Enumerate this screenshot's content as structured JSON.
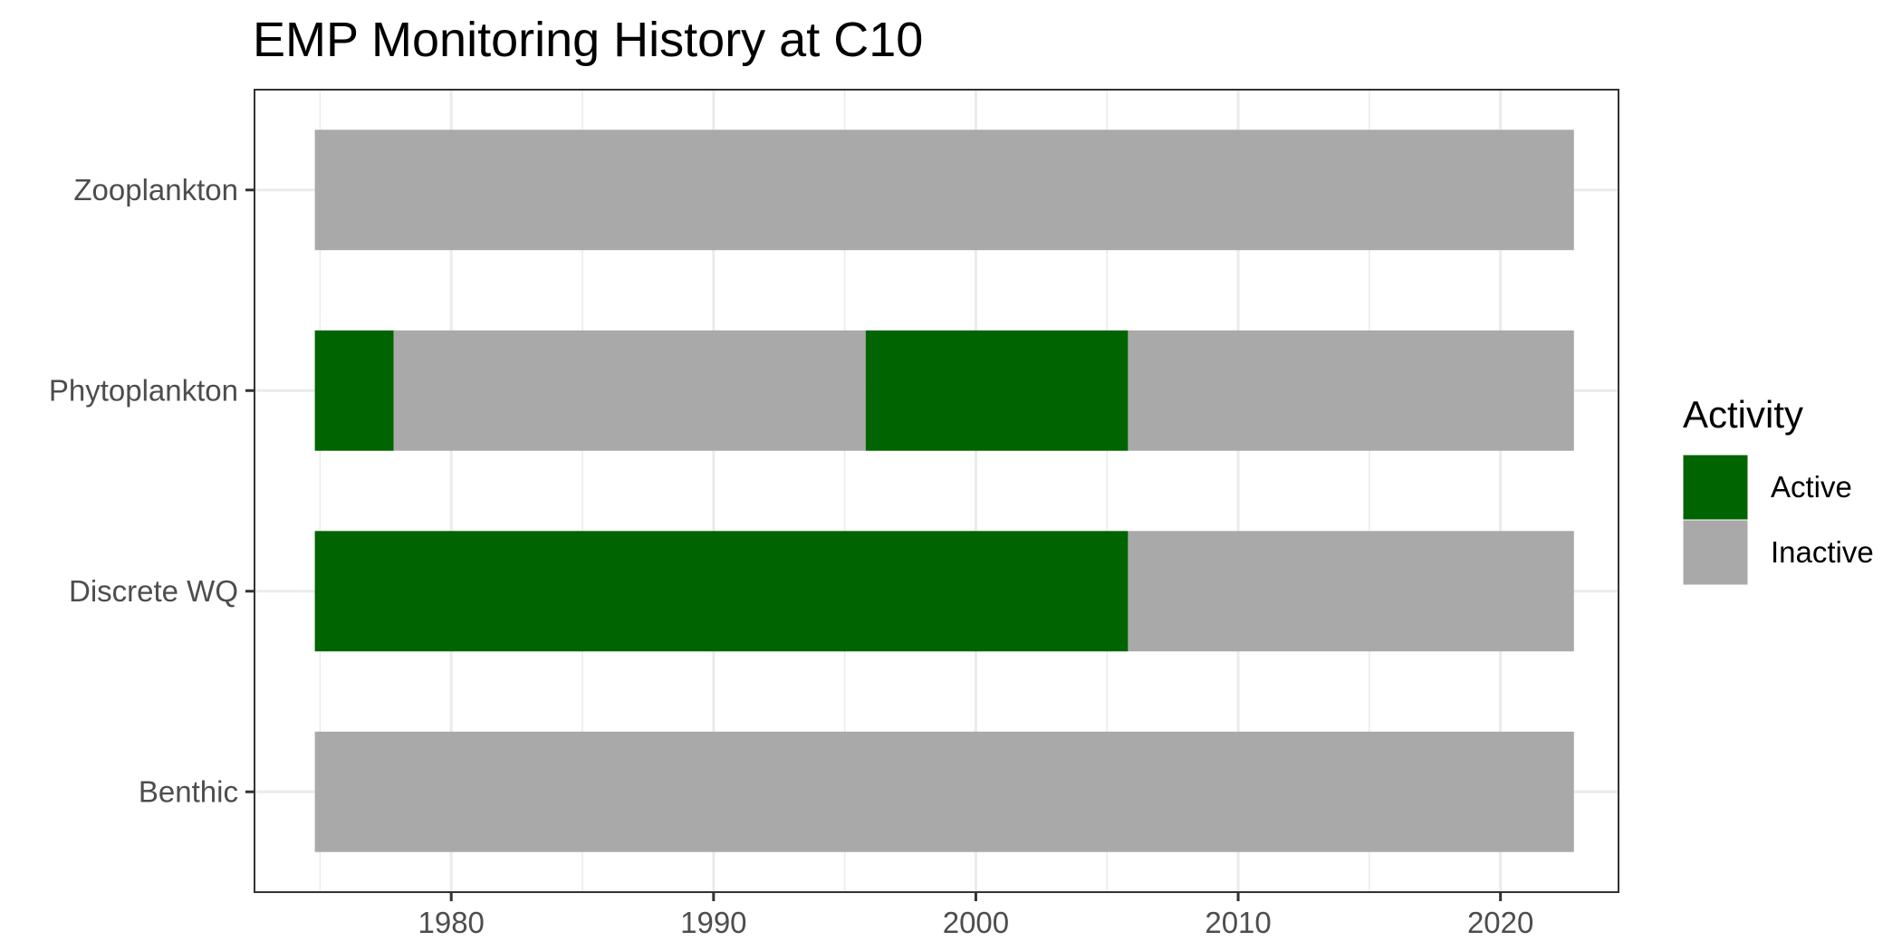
{
  "chart_data": {
    "type": "bar",
    "orientation": "horizontal",
    "title": "EMP Monitoring History at C10",
    "xlabel": "",
    "ylabel": "",
    "xlim": [
      1972.5,
      2024.5
    ],
    "xticks": [
      1980,
      1990,
      2000,
      2010,
      2020
    ],
    "categories": [
      "Zooplankton",
      "Phytoplankton",
      "Discrete WQ",
      "Benthic"
    ],
    "segments": [
      {
        "category": "Zooplankton",
        "start": 1974.8,
        "end": 2022.8,
        "activity": "Inactive"
      },
      {
        "category": "Phytoplankton",
        "start": 1974.8,
        "end": 1977.8,
        "activity": "Active"
      },
      {
        "category": "Phytoplankton",
        "start": 1977.8,
        "end": 1995.8,
        "activity": "Inactive"
      },
      {
        "category": "Phytoplankton",
        "start": 1995.8,
        "end": 2005.8,
        "activity": "Active"
      },
      {
        "category": "Phytoplankton",
        "start": 2005.8,
        "end": 2022.8,
        "activity": "Inactive"
      },
      {
        "category": "Discrete WQ",
        "start": 1974.8,
        "end": 2005.8,
        "activity": "Active"
      },
      {
        "category": "Discrete WQ",
        "start": 2005.8,
        "end": 2022.8,
        "activity": "Inactive"
      },
      {
        "category": "Benthic",
        "start": 1974.8,
        "end": 2022.8,
        "activity": "Inactive"
      }
    ],
    "legend": {
      "title": "Activity",
      "position": "right",
      "entries": [
        {
          "label": "Active",
          "color": "#006400"
        },
        {
          "label": "Inactive",
          "color": "#A9A9A9"
        }
      ]
    },
    "grid": true,
    "colors": {
      "Active": "#006400",
      "Inactive": "#A9A9A9",
      "grid": "#ebebeb",
      "panel_border": "#333333"
    }
  }
}
